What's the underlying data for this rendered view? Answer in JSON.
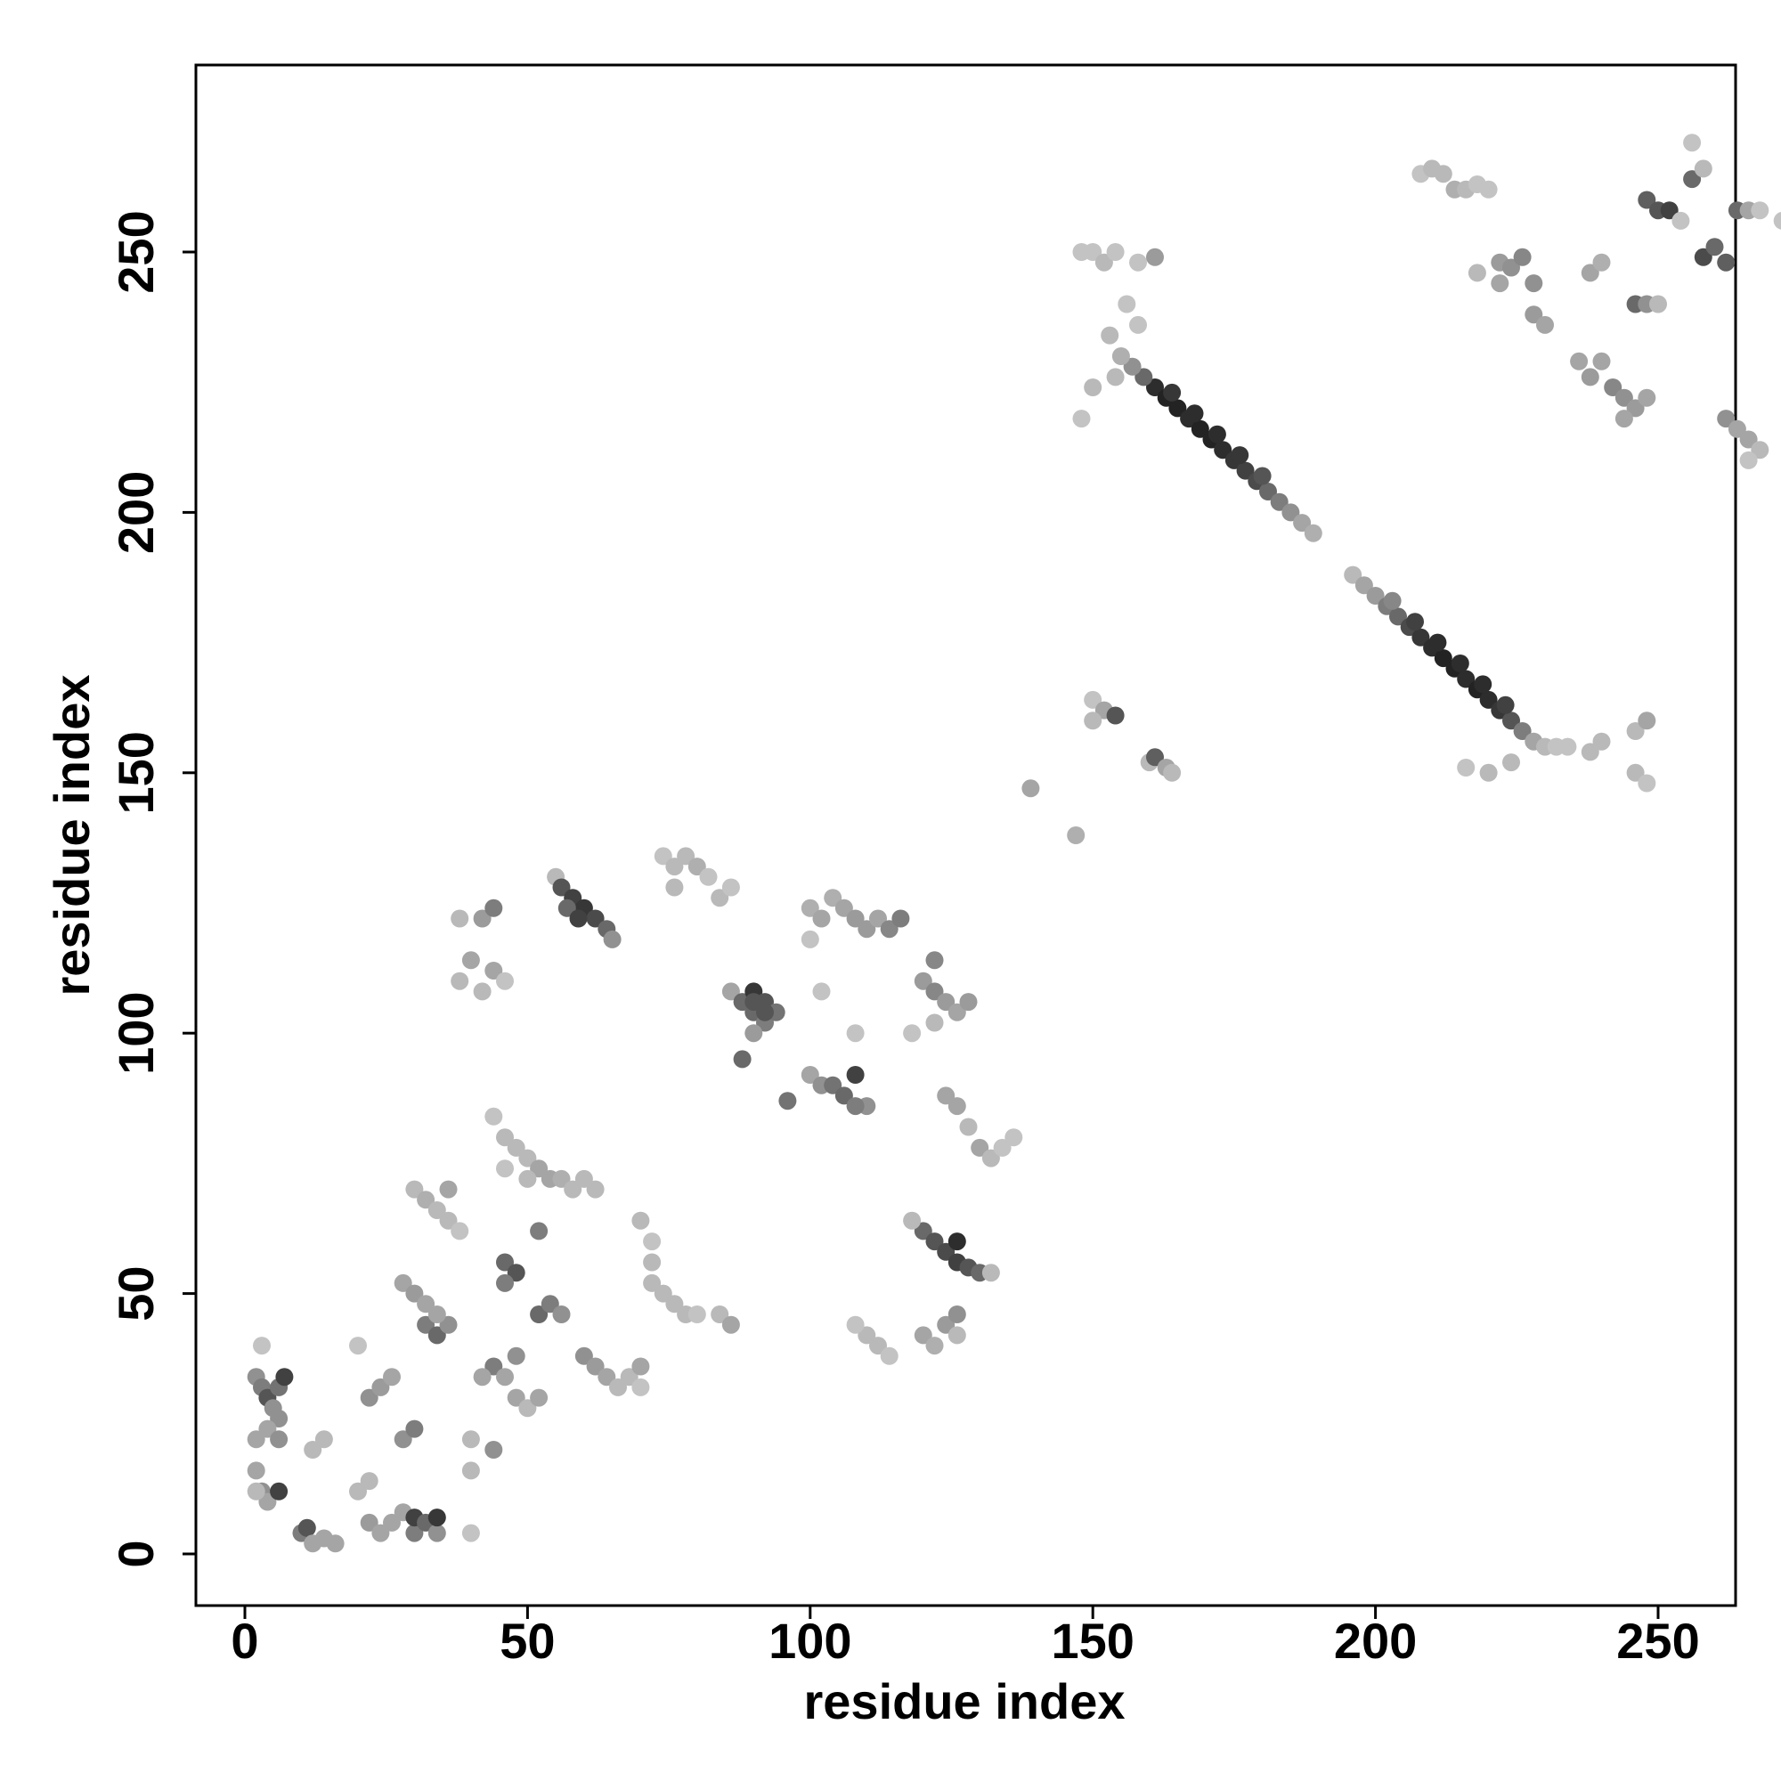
{
  "chart_data": {
    "type": "scatter",
    "title": "",
    "xlabel": "residue index",
    "ylabel": "residue index",
    "xlim": [
      -10,
      285
    ],
    "ylim": [
      -10,
      285
    ],
    "xticks": [
      0,
      50,
      100,
      150,
      200,
      250
    ],
    "yticks": [
      0,
      50,
      100,
      150,
      200,
      250
    ],
    "grid": false,
    "legend": "none",
    "point_color_scale": "grayscale (light = low, dark = high)",
    "points": [
      [
        161,
        224,
        0.9
      ],
      [
        163,
        222,
        0.95
      ],
      [
        165,
        220,
        0.95
      ],
      [
        167,
        218,
        0.9
      ],
      [
        169,
        216,
        0.95
      ],
      [
        171,
        214,
        0.95
      ],
      [
        173,
        212,
        0.9
      ],
      [
        175,
        210,
        0.85
      ],
      [
        177,
        208,
        0.8
      ],
      [
        179,
        206,
        0.75
      ],
      [
        181,
        204,
        0.6
      ],
      [
        183,
        202,
        0.5
      ],
      [
        185,
        200,
        0.4
      ],
      [
        187,
        198,
        0.3
      ],
      [
        189,
        196,
        0.25
      ],
      [
        159,
        226,
        0.6
      ],
      [
        157,
        228,
        0.4
      ],
      [
        155,
        230,
        0.25
      ],
      [
        153,
        234,
        0.2
      ],
      [
        164,
        223,
        0.85
      ],
      [
        168,
        219,
        0.9
      ],
      [
        172,
        215,
        0.9
      ],
      [
        176,
        211,
        0.85
      ],
      [
        180,
        207,
        0.7
      ],
      [
        196,
        188,
        0.2
      ],
      [
        198,
        186,
        0.3
      ],
      [
        200,
        184,
        0.35
      ],
      [
        202,
        182,
        0.5
      ],
      [
        204,
        180,
        0.6
      ],
      [
        206,
        178,
        0.75
      ],
      [
        208,
        176,
        0.85
      ],
      [
        210,
        174,
        0.9
      ],
      [
        212,
        172,
        0.95
      ],
      [
        214,
        170,
        0.95
      ],
      [
        216,
        168,
        0.9
      ],
      [
        218,
        166,
        0.95
      ],
      [
        220,
        164,
        0.9
      ],
      [
        222,
        162,
        0.85
      ],
      [
        224,
        160,
        0.7
      ],
      [
        226,
        158,
        0.5
      ],
      [
        228,
        156,
        0.3
      ],
      [
        230,
        155,
        0.2
      ],
      [
        232,
        155,
        0.15
      ],
      [
        234,
        155,
        0.15
      ],
      [
        203,
        183,
        0.45
      ],
      [
        207,
        179,
        0.8
      ],
      [
        211,
        175,
        0.9
      ],
      [
        215,
        171,
        0.9
      ],
      [
        219,
        167,
        0.9
      ],
      [
        223,
        163,
        0.8
      ],
      [
        148,
        250,
        0.15
      ],
      [
        150,
        250,
        0.15
      ],
      [
        152,
        248,
        0.2
      ],
      [
        154,
        250,
        0.15
      ],
      [
        158,
        248,
        0.15
      ],
      [
        161,
        249,
        0.35
      ],
      [
        156,
        240,
        0.15
      ],
      [
        158,
        236,
        0.15
      ],
      [
        154,
        226,
        0.2
      ],
      [
        150,
        224,
        0.2
      ],
      [
        148,
        218,
        0.15
      ],
      [
        150,
        164,
        0.15
      ],
      [
        152,
        162,
        0.3
      ],
      [
        154,
        161,
        0.7
      ],
      [
        150,
        160,
        0.2
      ],
      [
        160,
        152,
        0.2
      ],
      [
        161,
        153,
        0.65
      ],
      [
        163,
        151,
        0.3
      ],
      [
        164,
        150,
        0.2
      ],
      [
        139,
        147,
        0.3
      ],
      [
        147,
        138,
        0.25
      ],
      [
        208,
        265,
        0.15
      ],
      [
        210,
        266,
        0.2
      ],
      [
        212,
        265,
        0.2
      ],
      [
        214,
        262,
        0.25
      ],
      [
        216,
        262,
        0.2
      ],
      [
        218,
        263,
        0.15
      ],
      [
        220,
        262,
        0.15
      ],
      [
        222,
        248,
        0.35
      ],
      [
        224,
        247,
        0.4
      ],
      [
        226,
        249,
        0.45
      ],
      [
        228,
        244,
        0.4
      ],
      [
        228,
        238,
        0.35
      ],
      [
        230,
        236,
        0.3
      ],
      [
        222,
        244,
        0.3
      ],
      [
        218,
        246,
        0.2
      ],
      [
        238,
        246,
        0.3
      ],
      [
        240,
        248,
        0.25
      ],
      [
        236,
        229,
        0.3
      ],
      [
        238,
        226,
        0.35
      ],
      [
        240,
        229,
        0.3
      ],
      [
        242,
        224,
        0.45
      ],
      [
        244,
        222,
        0.4
      ],
      [
        246,
        220,
        0.35
      ],
      [
        248,
        222,
        0.3
      ],
      [
        244,
        218,
        0.3
      ],
      [
        246,
        240,
        0.6
      ],
      [
        248,
        240,
        0.4
      ],
      [
        250,
        240,
        0.2
      ],
      [
        248,
        260,
        0.65
      ],
      [
        250,
        258,
        0.7
      ],
      [
        252,
        258,
        0.8
      ],
      [
        254,
        256,
        0.15
      ],
      [
        256,
        264,
        0.6
      ],
      [
        258,
        266,
        0.2
      ],
      [
        256,
        271,
        0.15
      ],
      [
        258,
        249,
        0.75
      ],
      [
        260,
        251,
        0.6
      ],
      [
        262,
        248,
        0.65
      ],
      [
        264,
        258,
        0.6
      ],
      [
        266,
        258,
        0.3
      ],
      [
        268,
        258,
        0.15
      ],
      [
        272,
        256,
        0.15
      ],
      [
        262,
        218,
        0.4
      ],
      [
        264,
        216,
        0.3
      ],
      [
        266,
        214,
        0.3
      ],
      [
        268,
        212,
        0.2
      ],
      [
        266,
        210,
        0.15
      ],
      [
        246,
        158,
        0.2
      ],
      [
        248,
        160,
        0.3
      ],
      [
        246,
        150,
        0.2
      ],
      [
        248,
        148,
        0.15
      ],
      [
        240,
        156,
        0.2
      ],
      [
        238,
        154,
        0.2
      ],
      [
        216,
        151,
        0.15
      ],
      [
        220,
        150,
        0.2
      ],
      [
        224,
        152,
        0.2
      ],
      [
        55,
        130,
        0.2
      ],
      [
        56,
        128,
        0.7
      ],
      [
        58,
        126,
        0.8
      ],
      [
        60,
        124,
        0.85
      ],
      [
        62,
        122,
        0.75
      ],
      [
        64,
        120,
        0.6
      ],
      [
        65,
        118,
        0.4
      ],
      [
        57,
        124,
        0.6
      ],
      [
        59,
        122,
        0.8
      ],
      [
        38,
        122,
        0.2
      ],
      [
        42,
        122,
        0.35
      ],
      [
        44,
        124,
        0.5
      ],
      [
        40,
        114,
        0.3
      ],
      [
        44,
        112,
        0.3
      ],
      [
        42,
        108,
        0.2
      ],
      [
        38,
        110,
        0.2
      ],
      [
        46,
        110,
        0.15
      ],
      [
        74,
        134,
        0.15
      ],
      [
        76,
        132,
        0.2
      ],
      [
        78,
        134,
        0.2
      ],
      [
        80,
        132,
        0.25
      ],
      [
        82,
        130,
        0.15
      ],
      [
        84,
        126,
        0.2
      ],
      [
        86,
        128,
        0.15
      ],
      [
        76,
        128,
        0.2
      ],
      [
        100,
        124,
        0.25
      ],
      [
        102,
        122,
        0.3
      ],
      [
        104,
        126,
        0.25
      ],
      [
        106,
        124,
        0.3
      ],
      [
        108,
        122,
        0.35
      ],
      [
        110,
        120,
        0.35
      ],
      [
        112,
        122,
        0.3
      ],
      [
        114,
        120,
        0.45
      ],
      [
        116,
        122,
        0.5
      ],
      [
        100,
        118,
        0.15
      ],
      [
        86,
        108,
        0.3
      ],
      [
        88,
        106,
        0.6
      ],
      [
        90,
        104,
        0.6
      ],
      [
        92,
        102,
        0.5
      ],
      [
        90,
        108,
        0.85
      ],
      [
        92,
        106,
        0.7
      ],
      [
        94,
        104,
        0.55
      ],
      [
        90,
        100,
        0.35
      ],
      [
        88,
        95,
        0.6
      ],
      [
        96,
        87,
        0.55
      ],
      [
        100,
        92,
        0.3
      ],
      [
        102,
        90,
        0.4
      ],
      [
        104,
        90,
        0.55
      ],
      [
        106,
        88,
        0.6
      ],
      [
        108,
        92,
        0.8
      ],
      [
        110,
        86,
        0.4
      ],
      [
        108,
        86,
        0.5
      ],
      [
        102,
        108,
        0.15
      ],
      [
        108,
        100,
        0.15
      ],
      [
        120,
        110,
        0.35
      ],
      [
        122,
        108,
        0.45
      ],
      [
        124,
        106,
        0.35
      ],
      [
        126,
        104,
        0.3
      ],
      [
        128,
        106,
        0.35
      ],
      [
        122,
        114,
        0.45
      ],
      [
        118,
        100,
        0.15
      ],
      [
        122,
        102,
        0.2
      ],
      [
        124,
        88,
        0.3
      ],
      [
        126,
        86,
        0.3
      ],
      [
        128,
        82,
        0.2
      ],
      [
        130,
        78,
        0.3
      ],
      [
        132,
        76,
        0.2
      ],
      [
        134,
        78,
        0.15
      ],
      [
        136,
        80,
        0.15
      ],
      [
        120,
        62,
        0.6
      ],
      [
        122,
        60,
        0.7
      ],
      [
        124,
        58,
        0.75
      ],
      [
        126,
        56,
        0.8
      ],
      [
        128,
        55,
        0.7
      ],
      [
        130,
        54,
        0.6
      ],
      [
        126,
        60,
        0.9
      ],
      [
        118,
        64,
        0.2
      ],
      [
        132,
        54,
        0.2
      ],
      [
        120,
        42,
        0.3
      ],
      [
        122,
        40,
        0.25
      ],
      [
        124,
        44,
        0.35
      ],
      [
        126,
        46,
        0.4
      ],
      [
        126,
        42,
        0.2
      ],
      [
        110,
        42,
        0.2
      ],
      [
        112,
        40,
        0.2
      ],
      [
        114,
        38,
        0.15
      ],
      [
        108,
        44,
        0.15
      ],
      [
        90,
        106,
        0.7
      ],
      [
        92,
        104,
        0.7
      ],
      [
        44,
        84,
        0.15
      ],
      [
        46,
        80,
        0.2
      ],
      [
        48,
        78,
        0.2
      ],
      [
        50,
        76,
        0.2
      ],
      [
        52,
        74,
        0.3
      ],
      [
        54,
        72,
        0.3
      ],
      [
        56,
        72,
        0.25
      ],
      [
        58,
        70,
        0.2
      ],
      [
        60,
        72,
        0.2
      ],
      [
        62,
        70,
        0.2
      ],
      [
        50,
        72,
        0.2
      ],
      [
        46,
        74,
        0.15
      ],
      [
        30,
        70,
        0.2
      ],
      [
        32,
        68,
        0.25
      ],
      [
        34,
        66,
        0.2
      ],
      [
        36,
        64,
        0.2
      ],
      [
        38,
        62,
        0.15
      ],
      [
        36,
        70,
        0.3
      ],
      [
        46,
        56,
        0.6
      ],
      [
        48,
        54,
        0.7
      ],
      [
        46,
        52,
        0.5
      ],
      [
        52,
        46,
        0.6
      ],
      [
        54,
        48,
        0.5
      ],
      [
        56,
        46,
        0.4
      ],
      [
        52,
        62,
        0.5
      ],
      [
        28,
        52,
        0.3
      ],
      [
        30,
        50,
        0.35
      ],
      [
        32,
        48,
        0.3
      ],
      [
        32,
        44,
        0.5
      ],
      [
        34,
        42,
        0.6
      ],
      [
        36,
        44,
        0.4
      ],
      [
        34,
        46,
        0.3
      ],
      [
        70,
        64,
        0.2
      ],
      [
        72,
        60,
        0.15
      ],
      [
        72,
        56,
        0.2
      ],
      [
        72,
        52,
        0.2
      ],
      [
        74,
        50,
        0.2
      ],
      [
        76,
        48,
        0.2
      ],
      [
        78,
        46,
        0.2
      ],
      [
        80,
        46,
        0.15
      ],
      [
        84,
        46,
        0.2
      ],
      [
        86,
        44,
        0.3
      ],
      [
        60,
        38,
        0.4
      ],
      [
        62,
        36,
        0.35
      ],
      [
        64,
        34,
        0.3
      ],
      [
        66,
        32,
        0.2
      ],
      [
        68,
        34,
        0.2
      ],
      [
        70,
        32,
        0.15
      ],
      [
        70,
        36,
        0.3
      ],
      [
        44,
        36,
        0.5
      ],
      [
        46,
        34,
        0.3
      ],
      [
        48,
        30,
        0.3
      ],
      [
        50,
        28,
        0.2
      ],
      [
        52,
        30,
        0.3
      ],
      [
        48,
        38,
        0.4
      ],
      [
        42,
        34,
        0.3
      ],
      [
        40,
        22,
        0.2
      ],
      [
        44,
        20,
        0.4
      ],
      [
        40,
        16,
        0.2
      ],
      [
        20,
        40,
        0.15
      ],
      [
        22,
        30,
        0.4
      ],
      [
        24,
        32,
        0.35
      ],
      [
        26,
        34,
        0.3
      ],
      [
        28,
        22,
        0.4
      ],
      [
        30,
        24,
        0.5
      ],
      [
        2,
        34,
        0.4
      ],
      [
        3,
        32,
        0.5
      ],
      [
        4,
        30,
        0.7
      ],
      [
        5,
        28,
        0.4
      ],
      [
        6,
        26,
        0.4
      ],
      [
        6,
        32,
        0.55
      ],
      [
        7,
        34,
        0.8
      ],
      [
        2,
        22,
        0.3
      ],
      [
        4,
        24,
        0.3
      ],
      [
        6,
        22,
        0.4
      ],
      [
        3,
        40,
        0.15
      ],
      [
        2,
        16,
        0.3
      ],
      [
        3,
        12,
        0.4
      ],
      [
        4,
        10,
        0.3
      ],
      [
        6,
        12,
        0.8
      ],
      [
        2,
        12,
        0.2
      ],
      [
        10,
        4,
        0.5
      ],
      [
        11,
        5,
        0.7
      ],
      [
        12,
        2,
        0.3
      ],
      [
        14,
        3,
        0.3
      ],
      [
        12,
        20,
        0.2
      ],
      [
        14,
        22,
        0.2
      ],
      [
        16,
        2,
        0.3
      ],
      [
        20,
        12,
        0.2
      ],
      [
        22,
        14,
        0.2
      ],
      [
        22,
        6,
        0.35
      ],
      [
        24,
        4,
        0.3
      ],
      [
        26,
        6,
        0.3
      ],
      [
        28,
        8,
        0.3
      ],
      [
        30,
        4,
        0.5
      ],
      [
        30,
        7,
        0.8
      ],
      [
        32,
        6,
        0.6
      ],
      [
        34,
        4,
        0.4
      ],
      [
        34,
        7,
        0.85
      ],
      [
        40,
        4,
        0.15
      ]
    ]
  }
}
